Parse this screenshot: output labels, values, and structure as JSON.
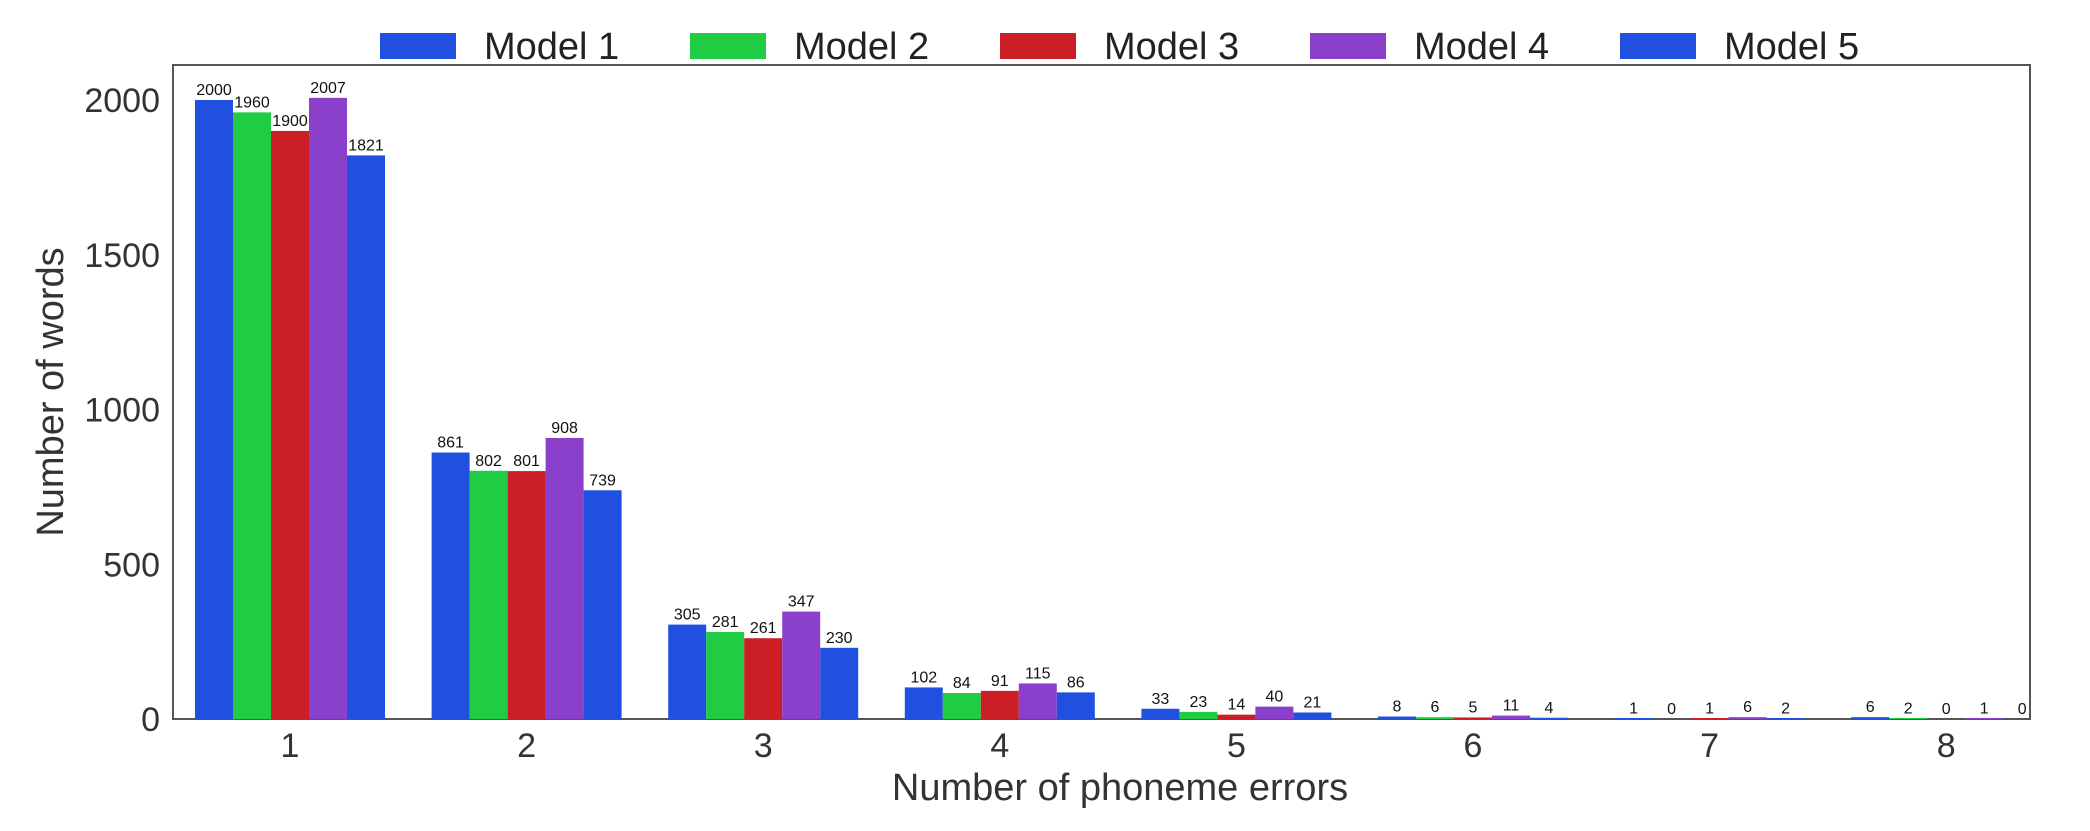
{
  "chart_data": {
    "type": "bar",
    "title": "",
    "xlabel": "Number of phoneme errors",
    "ylabel": "Number of words",
    "categories": [
      "1",
      "2",
      "3",
      "4",
      "5",
      "6",
      "7",
      "8"
    ],
    "ylim": [
      0,
      2100
    ],
    "yticks": [
      "0",
      "500",
      "1000",
      "1500",
      "2000"
    ],
    "grid": false,
    "legend_position": "top",
    "series": [
      {
        "name": "Model 1",
        "color": "#2150e0",
        "values": [
          2000,
          861,
          305,
          102,
          33,
          8,
          1,
          6
        ],
        "labels": [
          "2000",
          "861",
          "305",
          "102",
          "33",
          "8",
          "1",
          "6"
        ]
      },
      {
        "name": "Model 2",
        "color": "#20cc44",
        "values": [
          1960,
          802,
          281,
          84,
          23,
          6,
          0,
          2
        ],
        "labels": [
          "1960",
          "802",
          "281",
          "84",
          "23",
          "6",
          "0",
          "2"
        ]
      },
      {
        "name": "Model 3",
        "color": "#cc1e26",
        "values": [
          1900,
          801,
          261,
          91,
          14,
          5,
          1,
          0
        ],
        "labels": [
          "1900",
          "801",
          "261",
          "91",
          "14",
          "5",
          "1",
          "0"
        ]
      },
      {
        "name": "Model 4",
        "color": "#8b40cc",
        "values": [
          2007,
          908,
          347,
          115,
          40,
          11,
          6,
          1
        ],
        "labels": [
          "2007",
          "908",
          "347",
          "115",
          "40",
          "11",
          "6",
          "1"
        ]
      },
      {
        "name": "Model 5",
        "color": "#2150e0",
        "values": [
          1821,
          739,
          230,
          86,
          21,
          4,
          2,
          0
        ],
        "labels": [
          "1821",
          "739",
          "230",
          "86",
          "21",
          "4",
          "2",
          "0"
        ]
      }
    ]
  }
}
